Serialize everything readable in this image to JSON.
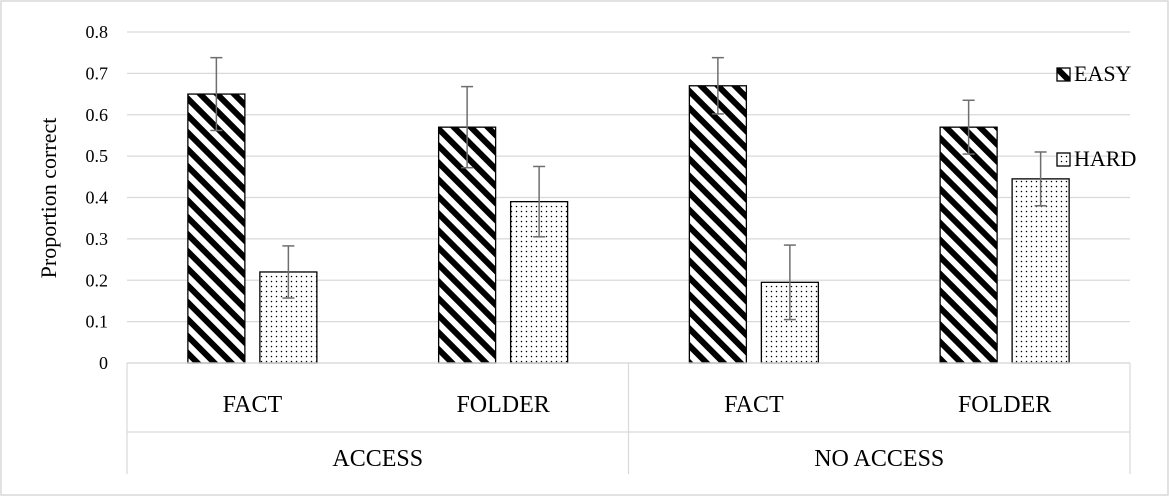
{
  "chart_data": {
    "type": "bar",
    "ylabel": "Proportion correct",
    "ylim": [
      0,
      0.8
    ],
    "yticks": [
      "0",
      "0.1",
      "0.2",
      "0.3",
      "0.4",
      "0.5",
      "0.6",
      "0.7",
      "0.8"
    ],
    "groups": [
      "ACCESS",
      "NO ACCESS"
    ],
    "categories": [
      "FACT",
      "FOLDER",
      "FACT",
      "FOLDER"
    ],
    "category_groups": [
      "ACCESS",
      "ACCESS",
      "NO ACCESS",
      "NO ACCESS"
    ],
    "series": [
      {
        "name": "EASY",
        "pattern": "diagonal-stripes",
        "values": [
          0.65,
          0.57,
          0.67,
          0.57
        ],
        "error": [
          0.088,
          0.098,
          0.068,
          0.065
        ]
      },
      {
        "name": "HARD",
        "pattern": "dots",
        "values": [
          0.22,
          0.39,
          0.195,
          0.445
        ],
        "error": [
          0.063,
          0.085,
          0.09,
          0.065
        ]
      }
    ],
    "grid": true,
    "legend_position": "right"
  },
  "colors": {
    "bar_outline": "#000000",
    "gridline": "#d9d9d9",
    "error_bar": "#6e6e6e",
    "frame": "#d9d9d9"
  }
}
